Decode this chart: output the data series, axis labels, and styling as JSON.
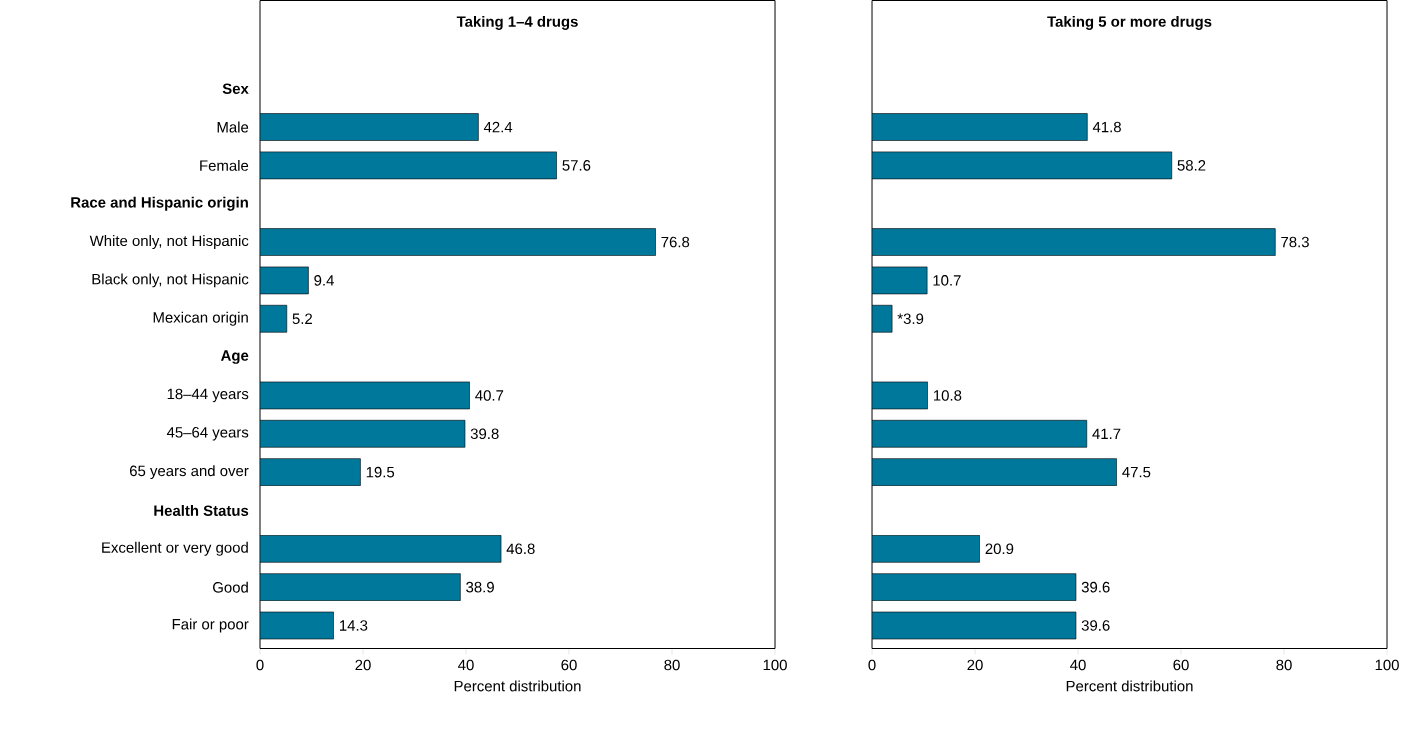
{
  "chart_data": [
    {
      "type": "bar",
      "orientation": "horizontal",
      "title": "Taking 1–4 drugs",
      "xlabel": "Percent distribution",
      "categories": [
        "**Sex**",
        "Male",
        "Female",
        "**Race and Hispanic origin**",
        "White only, not Hispanic",
        "Black only, not Hispanic",
        "Mexican origin",
        "**Age**",
        "18–44 years",
        "45–64 years",
        "65 years and over",
        "**Health Status**",
        "Excellent or very good",
        "Good",
        "Fair or poor"
      ],
      "values": [
        null,
        42.4,
        57.6,
        null,
        76.8,
        9.4,
        5.2,
        null,
        40.7,
        39.8,
        19.5,
        null,
        46.8,
        38.9,
        14.3
      ],
      "color": "#00789c",
      "data_labels": true,
      "xlim": [
        0,
        100
      ],
      "xticks": [
        0,
        20,
        40,
        60,
        80,
        100
      ]
    },
    {
      "type": "bar",
      "orientation": "horizontal",
      "title": "Taking 5 or more drugs",
      "xlabel": "Percent distribution",
      "categories": [
        null,
        null,
        null,
        null,
        null,
        null,
        null,
        null,
        null,
        null,
        null,
        null,
        null,
        null,
        null
      ],
      "values": [
        null,
        41.8,
        58.2,
        null,
        78.3,
        10.7,
        3.9,
        null,
        10.8,
        41.7,
        47.5,
        null,
        20.9,
        39.6,
        39.6
      ],
      "value_labels": [
        null,
        "41.8",
        "58.2",
        null,
        "78.3",
        "10.7",
        "*3.9",
        null,
        "10.8",
        "41.7",
        "47.5",
        null,
        "20.9",
        "39.6",
        "39.6"
      ],
      "color": "#00789c",
      "xlim": [
        0,
        100
      ],
      "xticks": [
        0,
        20,
        40,
        60,
        80,
        100
      ],
      "tick_labels": "x"
    }
  ]
}
